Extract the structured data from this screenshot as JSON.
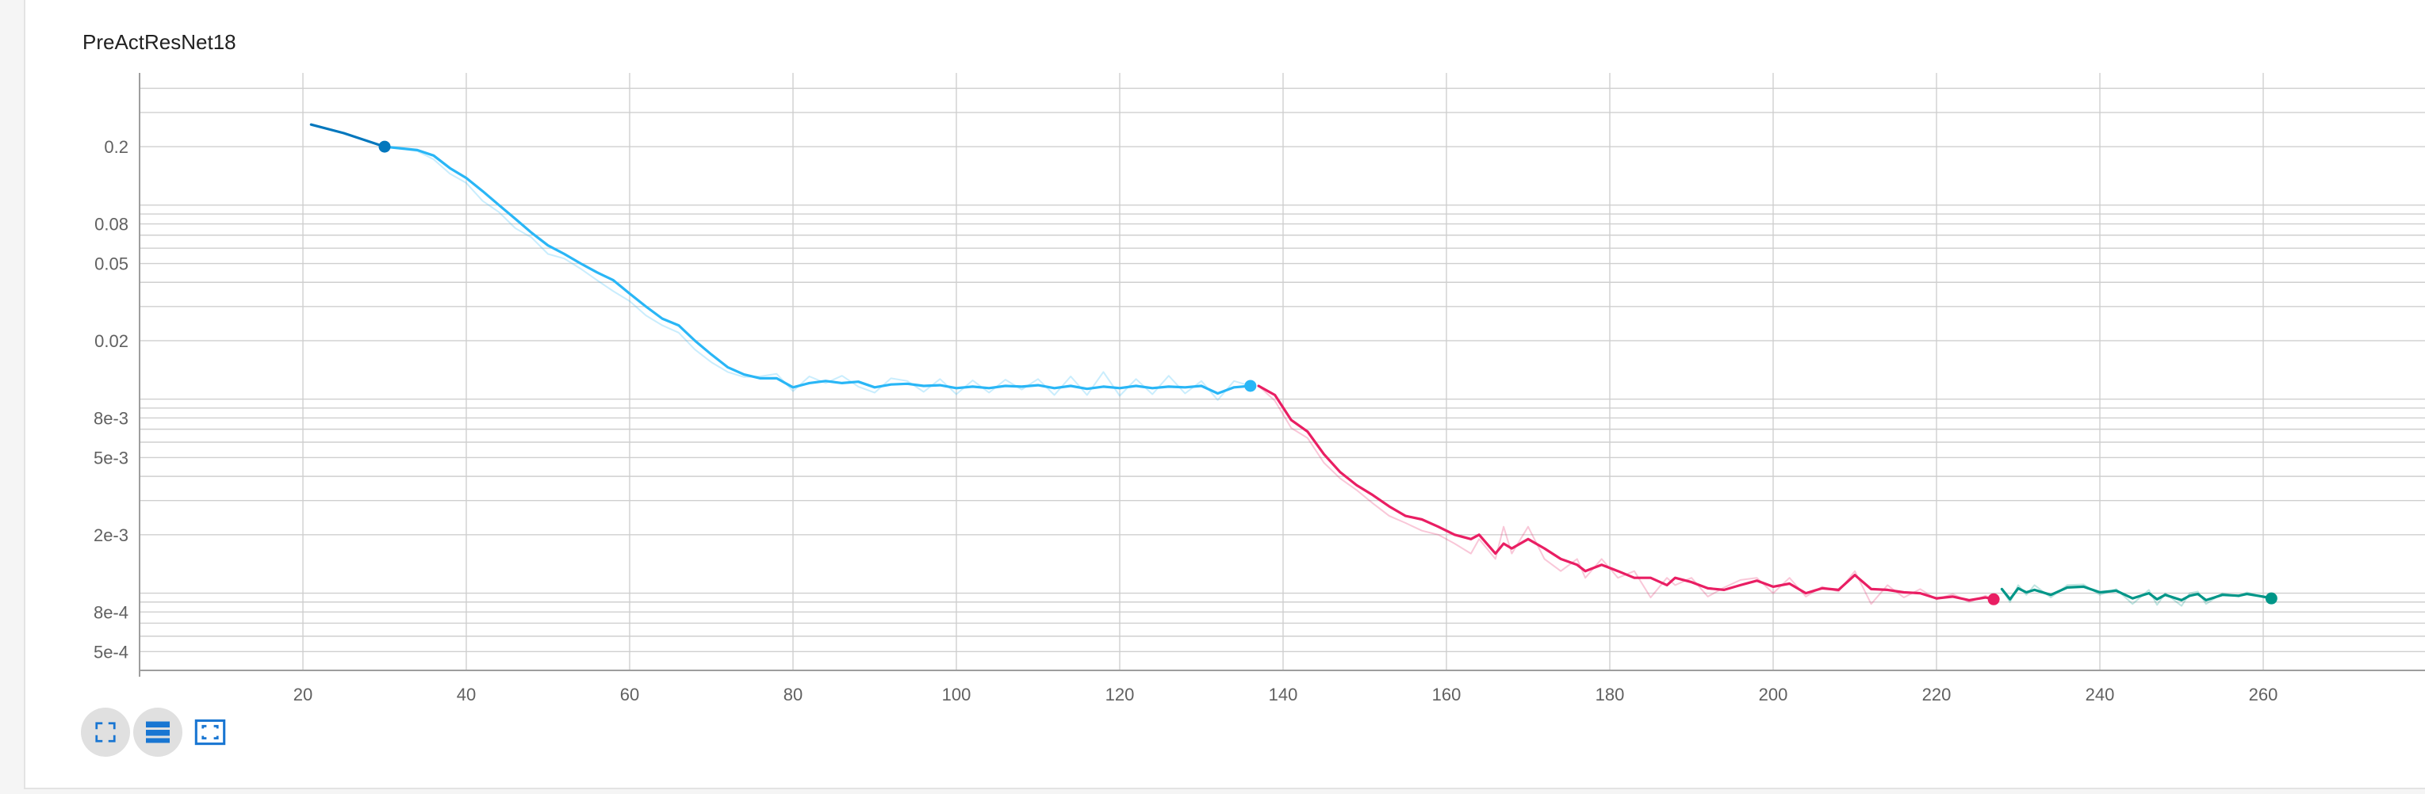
{
  "chart_data": {
    "type": "line",
    "title": "PreActResNet18",
    "xlabel": "",
    "ylabel": "",
    "yscale": "log",
    "xlim": [
      0,
      280
    ],
    "ylim": [
      0.0004,
      0.48
    ],
    "grid": true,
    "x_ticks": [
      20,
      40,
      60,
      80,
      100,
      120,
      140,
      160,
      180,
      200,
      220,
      240,
      260
    ],
    "x_tick_labels": [
      "20",
      "40",
      "60",
      "80",
      "100",
      "120",
      "140",
      "160",
      "180",
      "200",
      "220",
      "240",
      "260"
    ],
    "y_ticks": [
      0.2,
      0.08,
      0.05,
      0.02,
      0.008,
      0.005,
      0.002,
      0.0008,
      0.0005
    ],
    "y_tick_labels": [
      "0.2",
      "0.08",
      "0.05",
      "0.02",
      "8e-3",
      "5e-3",
      "2e-3",
      "8e-4",
      "5e-4"
    ],
    "series": [
      {
        "color": "#0277bd",
        "smoothed": [
          [
            21,
            0.26
          ],
          [
            25,
            0.235
          ],
          [
            30,
            0.2
          ]
        ],
        "raw": [
          [
            21,
            0.26
          ],
          [
            25,
            0.235
          ],
          [
            30,
            0.2
          ]
        ]
      },
      {
        "color": "#29b6f6",
        "smoothed": [
          [
            30,
            0.2
          ],
          [
            34,
            0.192
          ],
          [
            36,
            0.18
          ],
          [
            38,
            0.155
          ],
          [
            40,
            0.138
          ],
          [
            42,
            0.118
          ],
          [
            44,
            0.1
          ],
          [
            46,
            0.085
          ],
          [
            48,
            0.072
          ],
          [
            50,
            0.062
          ],
          [
            52,
            0.056
          ],
          [
            54,
            0.05
          ],
          [
            56,
            0.045
          ],
          [
            58,
            0.041
          ],
          [
            60,
            0.035
          ],
          [
            62,
            0.03
          ],
          [
            64,
            0.026
          ],
          [
            66,
            0.024
          ],
          [
            68,
            0.02
          ],
          [
            70,
            0.017
          ],
          [
            72,
            0.0146
          ],
          [
            74,
            0.0134
          ],
          [
            76,
            0.0128
          ],
          [
            78,
            0.0128
          ],
          [
            80,
            0.0115
          ],
          [
            82,
            0.0121
          ],
          [
            84,
            0.0124
          ],
          [
            86,
            0.0121
          ],
          [
            88,
            0.0123
          ],
          [
            90,
            0.0115
          ],
          [
            92,
            0.0119
          ],
          [
            94,
            0.012
          ],
          [
            96,
            0.0117
          ],
          [
            98,
            0.0118
          ],
          [
            100,
            0.0114
          ],
          [
            102,
            0.0116
          ],
          [
            104,
            0.0114
          ],
          [
            106,
            0.0117
          ],
          [
            108,
            0.0116
          ],
          [
            110,
            0.0118
          ],
          [
            112,
            0.0114
          ],
          [
            114,
            0.0117
          ],
          [
            116,
            0.0113
          ],
          [
            118,
            0.0116
          ],
          [
            120,
            0.0114
          ],
          [
            122,
            0.0117
          ],
          [
            124,
            0.0114
          ],
          [
            126,
            0.0116
          ],
          [
            128,
            0.0115
          ],
          [
            130,
            0.0117
          ],
          [
            132,
            0.0107
          ],
          [
            134,
            0.0115
          ],
          [
            136,
            0.0117
          ]
        ],
        "raw": [
          [
            30,
            0.2
          ],
          [
            34,
            0.19
          ],
          [
            36,
            0.172
          ],
          [
            38,
            0.145
          ],
          [
            40,
            0.13
          ],
          [
            42,
            0.105
          ],
          [
            44,
            0.092
          ],
          [
            46,
            0.076
          ],
          [
            48,
            0.068
          ],
          [
            50,
            0.056
          ],
          [
            52,
            0.053
          ],
          [
            54,
            0.047
          ],
          [
            56,
            0.041
          ],
          [
            58,
            0.036
          ],
          [
            60,
            0.032
          ],
          [
            62,
            0.027
          ],
          [
            64,
            0.024
          ],
          [
            66,
            0.022
          ],
          [
            68,
            0.018
          ],
          [
            70,
            0.0155
          ],
          [
            72,
            0.0138
          ],
          [
            74,
            0.013
          ],
          [
            76,
            0.0131
          ],
          [
            78,
            0.0135
          ],
          [
            80,
            0.011
          ],
          [
            82,
            0.0131
          ],
          [
            84,
            0.0121
          ],
          [
            86,
            0.0132
          ],
          [
            88,
            0.0116
          ],
          [
            90,
            0.0108
          ],
          [
            92,
            0.0128
          ],
          [
            94,
            0.0124
          ],
          [
            96,
            0.0109
          ],
          [
            98,
            0.0127
          ],
          [
            100,
            0.0106
          ],
          [
            102,
            0.0125
          ],
          [
            104,
            0.0108
          ],
          [
            106,
            0.0126
          ],
          [
            108,
            0.0112
          ],
          [
            110,
            0.0127
          ],
          [
            112,
            0.0105
          ],
          [
            114,
            0.0131
          ],
          [
            116,
            0.0105
          ],
          [
            118,
            0.0138
          ],
          [
            120,
            0.0104
          ],
          [
            122,
            0.0127
          ],
          [
            124,
            0.0106
          ],
          [
            126,
            0.0132
          ],
          [
            128,
            0.0107
          ],
          [
            130,
            0.0124
          ],
          [
            132,
            0.0099
          ],
          [
            134,
            0.0124
          ],
          [
            136,
            0.0117
          ]
        ]
      },
      {
        "color": "#e91e63",
        "smoothed": [
          [
            137,
            0.0117
          ],
          [
            139,
            0.0105
          ],
          [
            141,
            0.0078
          ],
          [
            143,
            0.0068
          ],
          [
            145,
            0.0052
          ],
          [
            147,
            0.0042
          ],
          [
            149,
            0.0036
          ],
          [
            151,
            0.0032
          ],
          [
            153,
            0.0028
          ],
          [
            155,
            0.0025
          ],
          [
            157,
            0.0024
          ],
          [
            159,
            0.0022
          ],
          [
            161,
            0.002
          ],
          [
            163,
            0.0019
          ],
          [
            164,
            0.002
          ],
          [
            166,
            0.0016
          ],
          [
            167,
            0.0018
          ],
          [
            168,
            0.0017
          ],
          [
            170,
            0.0019
          ],
          [
            172,
            0.0017
          ],
          [
            174,
            0.0015
          ],
          [
            176,
            0.0014
          ],
          [
            177,
            0.0013
          ],
          [
            179,
            0.0014
          ],
          [
            181,
            0.0013
          ],
          [
            183,
            0.0012
          ],
          [
            185,
            0.0012
          ],
          [
            187,
            0.0011
          ],
          [
            188,
            0.0012
          ],
          [
            190,
            0.00114
          ],
          [
            192,
            0.00106
          ],
          [
            194,
            0.00104
          ],
          [
            196,
            0.0011
          ],
          [
            198,
            0.00116
          ],
          [
            200,
            0.00108
          ],
          [
            202,
            0.00112
          ],
          [
            204,
            0.001
          ],
          [
            206,
            0.00106
          ],
          [
            208,
            0.00104
          ],
          [
            210,
            0.00124
          ],
          [
            212,
            0.00105
          ],
          [
            214,
            0.00104
          ],
          [
            216,
            0.00101
          ],
          [
            218,
            0.001
          ],
          [
            220,
            0.00094
          ],
          [
            222,
            0.00096
          ],
          [
            224,
            0.00092
          ],
          [
            226,
            0.00095
          ],
          [
            227,
            0.00093
          ]
        ],
        "raw": [
          [
            137,
            0.0117
          ],
          [
            139,
            0.0098
          ],
          [
            141,
            0.0071
          ],
          [
            143,
            0.0063
          ],
          [
            145,
            0.0047
          ],
          [
            147,
            0.0039
          ],
          [
            149,
            0.0034
          ],
          [
            151,
            0.0029
          ],
          [
            153,
            0.0025
          ],
          [
            155,
            0.0023
          ],
          [
            157,
            0.0021
          ],
          [
            159,
            0.002
          ],
          [
            161,
            0.0018
          ],
          [
            163,
            0.0016
          ],
          [
            164,
            0.0019
          ],
          [
            166,
            0.0015
          ],
          [
            167,
            0.0022
          ],
          [
            168,
            0.0016
          ],
          [
            170,
            0.0022
          ],
          [
            172,
            0.0015
          ],
          [
            174,
            0.0013
          ],
          [
            176,
            0.0015
          ],
          [
            177,
            0.0012
          ],
          [
            179,
            0.0015
          ],
          [
            181,
            0.0012
          ],
          [
            183,
            0.0013
          ],
          [
            185,
            0.00095
          ],
          [
            187,
            0.0012
          ],
          [
            188,
            0.0011
          ],
          [
            190,
            0.0012
          ],
          [
            192,
            0.00096
          ],
          [
            194,
            0.00107
          ],
          [
            196,
            0.00117
          ],
          [
            198,
            0.0012
          ],
          [
            200,
            0.001
          ],
          [
            202,
            0.0012
          ],
          [
            204,
            0.00096
          ],
          [
            206,
            0.00108
          ],
          [
            208,
            0.00102
          ],
          [
            210,
            0.0013
          ],
          [
            212,
            0.00088
          ],
          [
            214,
            0.0011
          ],
          [
            216,
            0.00095
          ],
          [
            218,
            0.00105
          ],
          [
            220,
            0.00093
          ],
          [
            222,
            0.00099
          ],
          [
            224,
            0.0009
          ],
          [
            226,
            0.00097
          ],
          [
            227,
            0.00093
          ]
        ]
      },
      {
        "color": "#009688",
        "smoothed": [
          [
            228,
            0.00105
          ],
          [
            229,
            0.00093
          ],
          [
            230,
            0.00106
          ],
          [
            231,
            0.00101
          ],
          [
            232,
            0.00104
          ],
          [
            234,
            0.00098
          ],
          [
            236,
            0.00107
          ],
          [
            238,
            0.00108
          ],
          [
            240,
            0.00101
          ],
          [
            242,
            0.00103
          ],
          [
            244,
            0.00094
          ],
          [
            246,
            0.001
          ],
          [
            247,
            0.00093
          ],
          [
            248,
            0.00098
          ],
          [
            250,
            0.00092
          ],
          [
            251,
            0.00097
          ],
          [
            252,
            0.00099
          ],
          [
            253,
            0.00092
          ],
          [
            255,
            0.00098
          ],
          [
            257,
            0.00097
          ],
          [
            258,
            0.00099
          ],
          [
            260,
            0.00096
          ],
          [
            261,
            0.00094
          ]
        ],
        "raw": [
          [
            228,
            0.00105
          ],
          [
            229,
            0.0009
          ],
          [
            230,
            0.0011
          ],
          [
            231,
            0.00098
          ],
          [
            232,
            0.0011
          ],
          [
            234,
            0.00095
          ],
          [
            236,
            0.0011
          ],
          [
            238,
            0.00111
          ],
          [
            240,
            0.00098
          ],
          [
            242,
            0.00105
          ],
          [
            244,
            0.00088
          ],
          [
            246,
            0.00104
          ],
          [
            247,
            0.00087
          ],
          [
            248,
            0.001
          ],
          [
            250,
            0.00086
          ],
          [
            251,
            0.001
          ],
          [
            252,
            0.00102
          ],
          [
            253,
            0.00088
          ],
          [
            255,
            0.001
          ],
          [
            257,
            0.00096
          ],
          [
            258,
            0.00101
          ],
          [
            260,
            0.00095
          ],
          [
            261,
            0.00094
          ]
        ]
      }
    ]
  },
  "toolbar": {
    "fullscreen_icon": "fullscreen-icon",
    "data_table_icon": "data-table-icon",
    "fit_domain_icon": "fit-domain-icon"
  }
}
